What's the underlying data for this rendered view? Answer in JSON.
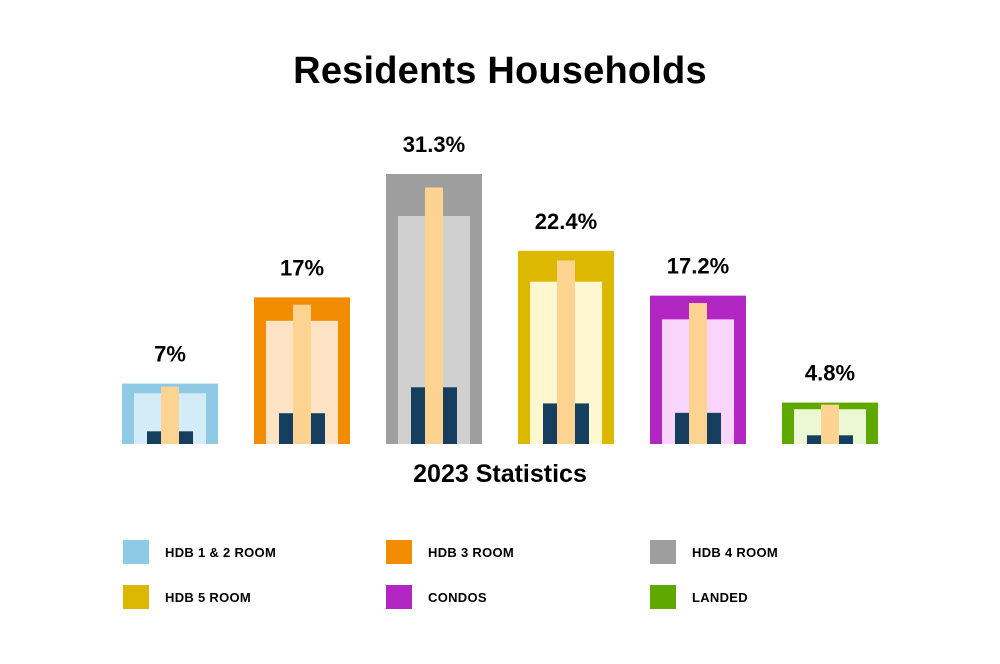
{
  "chart_data": {
    "type": "bar",
    "title": "Residents Households",
    "xlabel": "2023 Statistics",
    "ylabel": "",
    "ylim": [
      0,
      35
    ],
    "categories": [
      "HDB 1 & 2 ROOM",
      "HDB 3 ROOM",
      "HDB 4 ROOM",
      "HDB 5 ROOM",
      "CONDOS",
      "LANDED"
    ],
    "values": [
      7,
      17,
      31.3,
      22.4,
      17.2,
      4.8
    ],
    "value_labels": [
      "7%",
      "17%",
      "31.3%",
      "22.4%",
      "17.2%",
      "4.8%"
    ],
    "colors": [
      "#8ecae6",
      "#f28c00",
      "#9e9e9e",
      "#dcb900",
      "#b226c4",
      "#5fa800"
    ],
    "inner_colors": [
      "#d4ecf7",
      "#ffe3c4",
      "#d0d0d0",
      "#fff7cf",
      "#f9d4fb",
      "#eaf8d4"
    ],
    "accent_colors": {
      "tall_bar": "#fdd391",
      "short_bar": "#163e5f"
    },
    "legend_position": "bottom"
  }
}
